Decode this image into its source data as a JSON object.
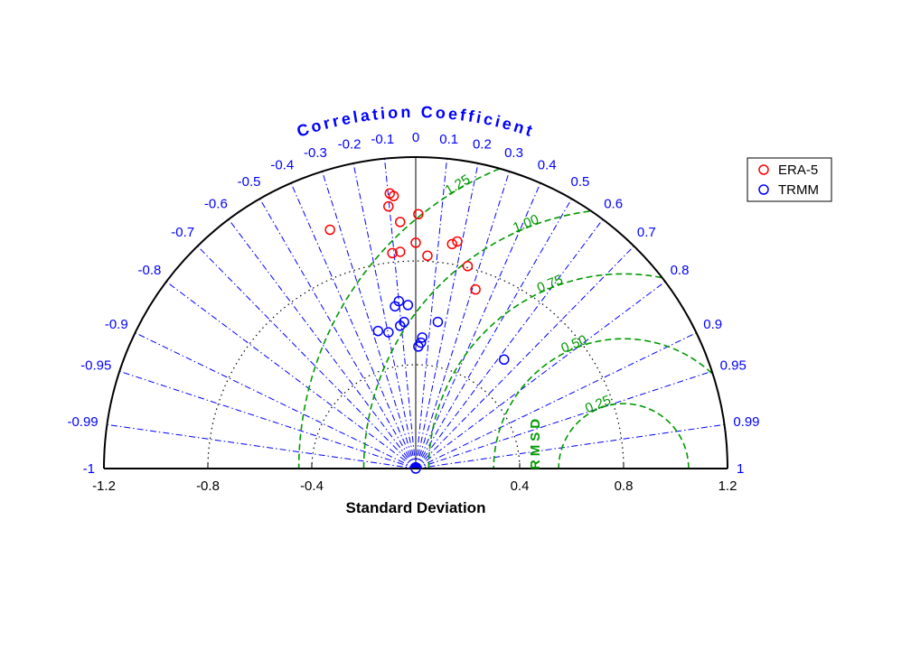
{
  "chart_data": {
    "type": "taylor diagram",
    "title": "",
    "correlation_label": "Correlation Coefficient",
    "xlabel": "Standard Deviation",
    "rms_label": "RMSD",
    "sd_range": [
      -1.2,
      1.2
    ],
    "sd_ticks": [
      "-1.2",
      "-0.8",
      "-0.4",
      "0.4",
      "0.8",
      "1.2"
    ],
    "sd_tick_values": [
      -1.2,
      -0.8,
      -0.4,
      0.4,
      0.8,
      1.2
    ],
    "sd_circles": [
      0.4,
      0.8
    ],
    "correlation_ticks": [
      "-1",
      "-0.99",
      "-0.95",
      "-0.9",
      "-0.8",
      "-0.7",
      "-0.6",
      "-0.5",
      "-0.4",
      "-0.3",
      "-0.2",
      "-0.1",
      "0",
      "0.1",
      "0.2",
      "0.3",
      "0.4",
      "0.5",
      "0.6",
      "0.7",
      "0.8",
      "0.9",
      "0.95",
      "0.99",
      "1"
    ],
    "correlation_values": [
      -1,
      -0.99,
      -0.95,
      -0.9,
      -0.8,
      -0.7,
      -0.6,
      -0.5,
      -0.4,
      -0.3,
      -0.2,
      -0.1,
      0,
      0.1,
      0.2,
      0.3,
      0.4,
      0.5,
      0.6,
      0.7,
      0.8,
      0.9,
      0.95,
      0.99,
      1
    ],
    "reference_sd": 0.8,
    "rms_contours": [
      {
        "value": 0.25,
        "label": "0.25"
      },
      {
        "value": 0.5,
        "label": "0.50"
      },
      {
        "value": 0.75,
        "label": "0.75"
      },
      {
        "value": 1.0,
        "label": "1.00"
      },
      {
        "value": 1.25,
        "label": "1.25"
      }
    ],
    "colors": {
      "axis": "#000000",
      "correlation": "#0000ff",
      "rms": "#009900",
      "sd_grid": "#000000"
    },
    "legend_position": "top-right",
    "series": [
      {
        "name": "ERA-5",
        "color": "#ff0000",
        "points": [
          {
            "x": -0.33,
            "y": 0.92
          },
          {
            "x": -0.105,
            "y": 1.01
          },
          {
            "x": -0.085,
            "y": 1.05
          },
          {
            "x": -0.1,
            "y": 1.06
          },
          {
            "x": 0.01,
            "y": 0.98
          },
          {
            "x": -0.06,
            "y": 0.95
          },
          {
            "x": 0.0,
            "y": 0.87
          },
          {
            "x": -0.09,
            "y": 0.83
          },
          {
            "x": -0.06,
            "y": 0.835
          },
          {
            "x": 0.045,
            "y": 0.82
          },
          {
            "x": 0.14,
            "y": 0.865
          },
          {
            "x": 0.16,
            "y": 0.875
          },
          {
            "x": 0.2,
            "y": 0.78
          },
          {
            "x": 0.23,
            "y": 0.69
          }
        ]
      },
      {
        "name": "TRMM",
        "color": "#0000ff",
        "points": [
          {
            "x": -0.065,
            "y": 0.645
          },
          {
            "x": -0.08,
            "y": 0.625
          },
          {
            "x": -0.03,
            "y": 0.63
          },
          {
            "x": -0.045,
            "y": 0.565
          },
          {
            "x": -0.06,
            "y": 0.55
          },
          {
            "x": -0.105,
            "y": 0.525
          },
          {
            "x": -0.145,
            "y": 0.53
          },
          {
            "x": 0.085,
            "y": 0.565
          },
          {
            "x": 0.025,
            "y": 0.505
          },
          {
            "x": 0.02,
            "y": 0.485
          },
          {
            "x": 0.01,
            "y": 0.47
          },
          {
            "x": 0.34,
            "y": 0.42
          },
          {
            "x": 0.0,
            "y": 0.0
          }
        ]
      }
    ]
  }
}
